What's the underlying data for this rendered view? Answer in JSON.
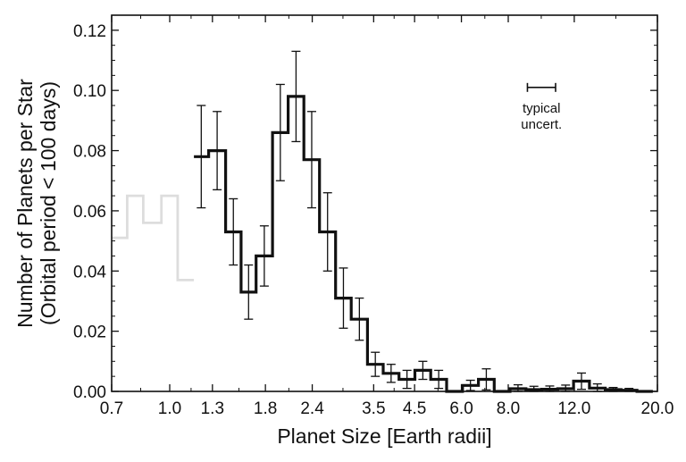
{
  "chart_data": {
    "type": "histogram",
    "xlabel": "Planet Size [Earth radii]",
    "ylabel_lines": [
      "Number of Planets per Star",
      "(Orbital period < 100 days)"
    ],
    "x_scale": "log",
    "xlim": [
      0.7,
      20.0
    ],
    "ylim": [
      0,
      0.125
    ],
    "x_ticks": [
      0.7,
      1.0,
      1.3,
      1.8,
      2.4,
      3.5,
      4.5,
      6.0,
      8.0,
      12.0,
      20.0
    ],
    "x_tick_labels": [
      "0.7",
      "1.0",
      "1.3",
      "1.8",
      "2.4",
      "3.5",
      "4.5",
      "6.0",
      "8.0",
      "12.0",
      "20.0"
    ],
    "y_ticks": [
      0,
      0.02,
      0.04,
      0.06,
      0.08,
      0.1,
      0.12
    ],
    "y_tick_labels": [
      "0.00",
      "0.02",
      "0.04",
      "0.06",
      "0.08",
      "0.10",
      "0.12"
    ],
    "annotation": {
      "lines": [
        "typical",
        "uncert."
      ],
      "bar_x": [
        9.0,
        10.7
      ],
      "bar_y": 0.101
    },
    "series": [
      {
        "style": "incomplete",
        "color": "#dddddd",
        "bin_edges": [
          0.7,
          0.77,
          0.85,
          0.95,
          1.05,
          1.16
        ],
        "values": [
          0.051,
          0.065,
          0.056,
          0.065,
          0.037
        ]
      },
      {
        "style": "main",
        "color": "#111111",
        "bin_edges": [
          1.16,
          1.27,
          1.41,
          1.55,
          1.7,
          1.88,
          2.07,
          2.28,
          2.51,
          2.77,
          3.05,
          3.37,
          3.71,
          4.09,
          4.51,
          4.97,
          5.48,
          6.04,
          6.66,
          7.34,
          8.09,
          8.92,
          9.83,
          10.84,
          11.95,
          13.17,
          14.52,
          16.0,
          17.64,
          19.45
        ],
        "values": [
          0.078,
          0.08,
          0.053,
          0.033,
          0.045,
          0.086,
          0.098,
          0.077,
          0.053,
          0.031,
          0.024,
          0.009,
          0.006,
          0.004,
          0.007,
          0.004,
          0.0,
          0.002,
          0.004,
          0.0,
          0.0009,
          0.0006,
          0.0007,
          0.0009,
          0.0034,
          0.0011,
          0.0006,
          0.0004,
          0.0
        ],
        "errors": [
          0.017,
          0.013,
          0.011,
          0.009,
          0.01,
          0.016,
          0.015,
          0.016,
          0.013,
          0.01,
          0.007,
          0.004,
          0.003,
          0.003,
          0.003,
          0.003,
          0.0,
          0.0017,
          0.0035,
          0.0,
          0.0013,
          0.0011,
          0.0011,
          0.0012,
          0.0027,
          0.0014,
          0.0007,
          0.0006,
          0.0
        ]
      }
    ]
  }
}
